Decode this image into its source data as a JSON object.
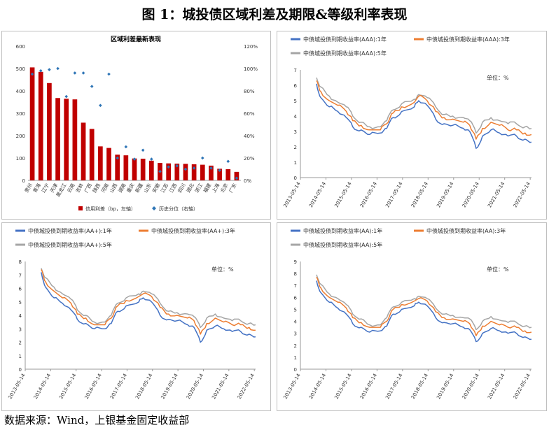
{
  "figure_title": "图 1：城投债区域利差及期限&等级利率表现",
  "source": "数据来源：Wind，上银基金固定收益部",
  "colors": {
    "bar": "#C00000",
    "dot": "#2E75B6",
    "y1": "#4472C4",
    "y3": "#ED7D31",
    "y5": "#A5A5A5"
  },
  "chart_data": [
    {
      "type": "bar",
      "title": "区域利差最新表现",
      "categories": [
        "贵州",
        "青海",
        "辽宁",
        "天津",
        "黑龙江",
        "云南",
        "吉林",
        "广西",
        "陕西",
        "河南",
        "山西",
        "湖南",
        "重庆",
        "新疆",
        "山东",
        "安徽",
        "江苏",
        "江西",
        "四川",
        "湖北",
        "浙江",
        "福建",
        "上海",
        "北京",
        "广东"
      ],
      "series": [
        {
          "name": "信用利差（bp，左轴）",
          "axis": "left",
          "values": [
            505,
            485,
            435,
            368,
            365,
            362,
            258,
            230,
            152,
            145,
            115,
            112,
            98,
            97,
            88,
            78,
            76,
            75,
            74,
            72,
            70,
            66,
            52,
            50,
            38
          ]
        },
        {
          "name": "历史分位（右轴）",
          "axis": "right",
          "values": [
            0.95,
            0.98,
            0.99,
            1.0,
            0.75,
            0.96,
            0.96,
            0.84,
            0.67,
            0.95,
            0.2,
            0.3,
            0.19,
            0.27,
            0.19,
            0.08,
            0.12,
            0.13,
            0.1,
            0.11,
            0.2,
            0.11,
            0.09,
            0.17,
            0.02
          ]
        }
      ],
      "left_ticks": [
        "0",
        "100",
        "200",
        "300",
        "400",
        "500",
        "600"
      ],
      "right_ticks": [
        "0%",
        "20%",
        "40%",
        "60%",
        "80%",
        "100%",
        "120%"
      ],
      "ylim": [
        0,
        600
      ],
      "y2lim": [
        0,
        1.2
      ],
      "legend_position": "bottom"
    },
    {
      "type": "line",
      "unit_label": "单位：%",
      "series_names": [
        "中债城投债到期收益率(AAA):1年",
        "中债城投债到期收益率(AAA):3年",
        "中债城投债到期收益率(AAA):5年"
      ],
      "y_ticks": [
        "0",
        "1",
        "2",
        "3",
        "4",
        "5",
        "6",
        "7"
      ],
      "ylim": [
        0,
        7
      ],
      "x_ticks": [
        "2013-05-14",
        "2014-05-14",
        "2015-05-14",
        "2016-05-14",
        "2017-05-14",
        "2018-05-14",
        "2019-05-14",
        "2020-05-14",
        "2021-05-14",
        "2022-05-14"
      ],
      "x": [
        "2014-01",
        "2014-03",
        "2014-07",
        "2014-11",
        "2015-03",
        "2015-06",
        "2015-10",
        "2016-02",
        "2016-07",
        "2016-10",
        "2017-01",
        "2017-05",
        "2017-11",
        "2018-01",
        "2018-05",
        "2018-09",
        "2019-01",
        "2019-05",
        "2019-10",
        "2020-01",
        "2020-04",
        "2020-07",
        "2020-11",
        "2021-03",
        "2021-07",
        "2021-11",
        "2022-03",
        "2022-06"
      ],
      "series": [
        {
          "values": [
            6.1,
            5.2,
            4.6,
            4.3,
            3.9,
            3.3,
            3.1,
            2.8,
            2.9,
            3.2,
            3.9,
            4.3,
            4.6,
            5.0,
            4.7,
            3.8,
            3.5,
            3.4,
            3.2,
            3.0,
            1.9,
            2.7,
            3.1,
            2.9,
            2.7,
            2.7,
            2.5,
            2.3
          ]
        },
        {
          "values": [
            6.3,
            5.6,
            5.0,
            4.7,
            4.3,
            3.7,
            3.4,
            3.1,
            3.1,
            3.5,
            4.2,
            4.6,
            4.9,
            5.3,
            5.0,
            4.3,
            3.9,
            3.8,
            3.6,
            3.4,
            2.5,
            3.2,
            3.6,
            3.4,
            3.1,
            3.1,
            2.9,
            2.8
          ]
        },
        {
          "values": [
            6.5,
            5.9,
            5.3,
            4.9,
            4.6,
            4.0,
            3.6,
            3.3,
            3.3,
            3.7,
            4.4,
            4.8,
            5.1,
            5.4,
            5.2,
            4.6,
            4.1,
            4.0,
            3.9,
            3.7,
            2.9,
            3.6,
            3.9,
            3.7,
            3.5,
            3.5,
            3.3,
            3.2
          ]
        }
      ]
    },
    {
      "type": "line",
      "unit_label": "单位：%",
      "series_names": [
        "中债城投债到期收益率(AA+):1年",
        "中债城投债到期收益率(AA+):3年",
        "中债城投债到期收益率(AA+):5年"
      ],
      "y_ticks": [
        "0",
        "1",
        "2",
        "3",
        "4",
        "5",
        "6",
        "7",
        "8"
      ],
      "ylim": [
        0,
        8
      ],
      "x_ticks": [
        "2013-05-14",
        "2014-05-14",
        "2015-05-14",
        "2016-05-14",
        "2017-05-14",
        "2018-05-14",
        "2019-05-14",
        "2020-05-14",
        "2021-05-14",
        "2022-05-14"
      ],
      "x": [
        "2014-01",
        "2014-03",
        "2014-07",
        "2014-11",
        "2015-03",
        "2015-06",
        "2015-10",
        "2016-02",
        "2016-07",
        "2016-10",
        "2017-01",
        "2017-05",
        "2017-11",
        "2018-01",
        "2018-05",
        "2018-09",
        "2019-01",
        "2019-05",
        "2019-10",
        "2020-01",
        "2020-04",
        "2020-07",
        "2020-11",
        "2021-03",
        "2021-07",
        "2021-11",
        "2022-03",
        "2022-06"
      ],
      "series": [
        {
          "values": [
            7.2,
            6.1,
            5.3,
            4.9,
            4.4,
            3.7,
            3.4,
            3.0,
            3.0,
            3.4,
            4.3,
            4.7,
            5.0,
            5.3,
            5.0,
            4.0,
            3.7,
            3.6,
            3.3,
            3.1,
            2.0,
            2.9,
            3.2,
            3.0,
            2.8,
            2.8,
            2.6,
            2.4
          ]
        },
        {
          "values": [
            7.4,
            6.5,
            5.8,
            5.3,
            4.9,
            4.1,
            3.8,
            3.3,
            3.3,
            3.8,
            4.7,
            5.1,
            5.4,
            5.6,
            5.4,
            4.6,
            4.1,
            4.0,
            3.8,
            3.6,
            2.6,
            3.4,
            3.8,
            3.5,
            3.3,
            3.3,
            3.1,
            2.9
          ]
        },
        {
          "values": [
            7.5,
            6.8,
            6.1,
            5.6,
            5.2,
            4.4,
            4.0,
            3.5,
            3.5,
            4.0,
            4.9,
            5.3,
            5.6,
            5.8,
            5.6,
            4.9,
            4.3,
            4.2,
            4.1,
            3.9,
            3.1,
            3.8,
            4.1,
            3.8,
            3.6,
            3.6,
            3.4,
            3.3
          ]
        }
      ]
    },
    {
      "type": "line",
      "unit_label": "单位：%",
      "series_names": [
        "中债城投债到期收益率(AA):1年",
        "中债城投债到期收益率(AA):3年",
        "中债城投债到期收益率(AA):5年"
      ],
      "y_ticks": [
        "0",
        "1",
        "2",
        "3",
        "4",
        "5",
        "6",
        "7",
        "8",
        "9"
      ],
      "ylim": [
        0,
        9
      ],
      "x_ticks": [
        "2013-05-14",
        "2014-05-14",
        "2015-05-14",
        "2016-05-14",
        "2017-05-14",
        "2018-05-14",
        "2019-05-14",
        "2020-05-14",
        "2021-05-14",
        "2022-05-14"
      ],
      "x": [
        "2014-01",
        "2014-03",
        "2014-07",
        "2014-11",
        "2015-03",
        "2015-06",
        "2015-10",
        "2016-02",
        "2016-07",
        "2016-10",
        "2017-01",
        "2017-05",
        "2017-11",
        "2018-01",
        "2018-05",
        "2018-09",
        "2019-01",
        "2019-05",
        "2019-10",
        "2020-01",
        "2020-04",
        "2020-07",
        "2020-11",
        "2021-03",
        "2021-07",
        "2021-11",
        "2022-03",
        "2022-06"
      ],
      "series": [
        {
          "values": [
            7.4,
            6.4,
            5.6,
            5.1,
            4.6,
            3.8,
            3.5,
            3.1,
            3.2,
            3.6,
            4.6,
            5.0,
            5.3,
            5.6,
            5.3,
            4.3,
            3.9,
            3.8,
            3.5,
            3.3,
            2.3,
            3.0,
            3.4,
            3.2,
            3.0,
            3.0,
            2.7,
            2.5
          ]
        },
        {
          "values": [
            7.7,
            6.8,
            6.0,
            5.6,
            5.1,
            4.3,
            3.9,
            3.5,
            3.5,
            4.0,
            5.0,
            5.4,
            5.7,
            5.9,
            5.7,
            4.8,
            4.3,
            4.2,
            4.0,
            3.8,
            2.8,
            3.6,
            4.0,
            3.7,
            3.5,
            3.5,
            3.2,
            3.1
          ]
        },
        {
          "values": [
            7.9,
            7.1,
            6.3,
            5.9,
            5.4,
            4.6,
            4.2,
            3.7,
            3.7,
            4.3,
            5.2,
            5.6,
            5.9,
            6.1,
            5.9,
            5.1,
            4.6,
            4.5,
            4.3,
            4.2,
            3.3,
            4.0,
            4.4,
            4.1,
            3.9,
            3.9,
            3.6,
            3.5
          ]
        }
      ]
    }
  ]
}
